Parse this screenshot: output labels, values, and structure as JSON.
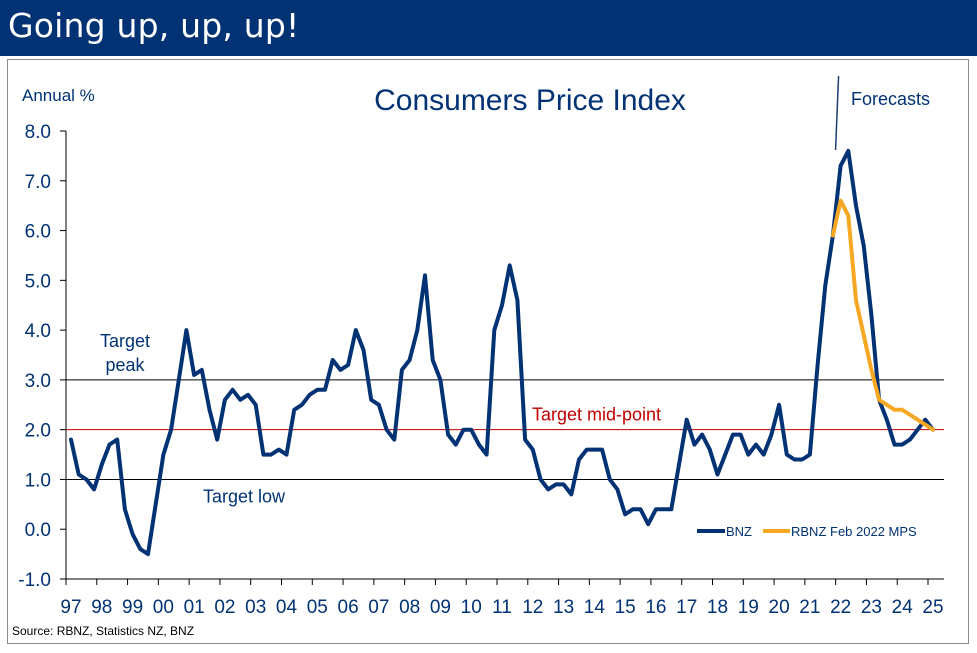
{
  "header": {
    "title": "Going up, up, up!"
  },
  "chart_data": {
    "type": "line",
    "title": "Consumers Price Index",
    "ylabel": "Annual %",
    "xlabel": "",
    "ylim": [
      -1.0,
      8.0
    ],
    "yticks": [
      "8.0",
      "7.0",
      "6.0",
      "5.0",
      "4.0",
      "3.0",
      "2.0",
      "1.0",
      "0.0",
      "-1.0"
    ],
    "ytick_values": [
      8,
      7,
      6,
      5,
      4,
      3,
      2,
      1,
      0,
      -1
    ],
    "xlim": [
      1997.0,
      2025.2
    ],
    "xtick_labels": [
      "97",
      "98",
      "99",
      "00",
      "01",
      "02",
      "03",
      "04",
      "05",
      "06",
      "07",
      "08",
      "09",
      "10",
      "11",
      "12",
      "13",
      "14",
      "15",
      "16",
      "17",
      "18",
      "19",
      "20",
      "21",
      "22",
      "23",
      "24",
      "25"
    ],
    "xtick_values": [
      1997,
      1998,
      1999,
      2000,
      2001,
      2002,
      2003,
      2004,
      2005,
      2006,
      2007,
      2008,
      2009,
      2010,
      2011,
      2012,
      2013,
      2014,
      2015,
      2016,
      2017,
      2018,
      2019,
      2020,
      2021,
      2022,
      2023,
      2024,
      2025
    ],
    "grid": false,
    "reference_lines": [
      {
        "name": "target-peak",
        "value": 3.0,
        "label": "Target\npeak",
        "color": "#000000"
      },
      {
        "name": "target-mid",
        "value": 2.0,
        "label": "Target mid-point",
        "color": "#c00000"
      },
      {
        "name": "target-low",
        "value": 1.0,
        "label": "Target low",
        "color": "#000000"
      }
    ],
    "annotations": [
      {
        "text": "Forecasts",
        "x": 2021.9
      }
    ],
    "legend": {
      "placement": "bottom-right",
      "entries": [
        "BNZ",
        "RBNZ Feb 2022 MPS"
      ]
    },
    "source": "Source: RBNZ, Statistics NZ, BNZ",
    "series": [
      {
        "name": "BNZ",
        "color": "#003274",
        "x": [
          1997.0,
          1997.25,
          1997.5,
          1997.75,
          1998.0,
          1998.25,
          1998.5,
          1998.75,
          1999.0,
          1999.25,
          1999.5,
          1999.75,
          2000.0,
          2000.25,
          2000.5,
          2000.75,
          2001.0,
          2001.25,
          2001.5,
          2001.75,
          2002.0,
          2002.25,
          2002.5,
          2002.75,
          2003.0,
          2003.25,
          2003.5,
          2003.75,
          2004.0,
          2004.25,
          2004.5,
          2004.75,
          2005.0,
          2005.25,
          2005.5,
          2005.75,
          2006.0,
          2006.25,
          2006.5,
          2006.75,
          2007.0,
          2007.25,
          2007.5,
          2007.75,
          2008.0,
          2008.25,
          2008.5,
          2008.75,
          2009.0,
          2009.25,
          2009.5,
          2009.75,
          2010.0,
          2010.25,
          2010.5,
          2010.75,
          2011.0,
          2011.25,
          2011.5,
          2011.75,
          2012.0,
          2012.25,
          2012.5,
          2012.75,
          2013.0,
          2013.25,
          2013.5,
          2013.75,
          2014.0,
          2014.25,
          2014.5,
          2014.75,
          2015.0,
          2015.25,
          2015.5,
          2015.75,
          2016.0,
          2016.25,
          2016.5,
          2016.75,
          2017.0,
          2017.25,
          2017.5,
          2017.75,
          2018.0,
          2018.25,
          2018.5,
          2018.75,
          2019.0,
          2019.25,
          2019.5,
          2019.75,
          2020.0,
          2020.25,
          2020.5,
          2020.75,
          2021.0,
          2021.25,
          2021.5,
          2021.75,
          2022.0,
          2022.25,
          2022.5,
          2022.75,
          2023.0,
          2023.25,
          2023.5,
          2023.75,
          2024.0,
          2024.25,
          2024.5,
          2024.75,
          2025.0
        ],
        "values": [
          1.8,
          1.1,
          1.0,
          0.8,
          1.3,
          1.7,
          1.8,
          0.4,
          -0.1,
          -0.4,
          -0.5,
          0.5,
          1.5,
          2.0,
          3.0,
          4.0,
          3.1,
          3.2,
          2.4,
          1.8,
          2.6,
          2.8,
          2.6,
          2.7,
          2.5,
          1.5,
          1.5,
          1.6,
          1.5,
          2.4,
          2.5,
          2.7,
          2.8,
          2.8,
          3.4,
          3.2,
          3.3,
          4.0,
          3.6,
          2.6,
          2.5,
          2.0,
          1.8,
          3.2,
          3.4,
          4.0,
          5.1,
          3.4,
          3.0,
          1.9,
          1.7,
          2.0,
          2.0,
          1.7,
          1.5,
          4.0,
          4.5,
          5.3,
          4.6,
          1.8,
          1.6,
          1.0,
          0.8,
          0.9,
          0.9,
          0.7,
          1.4,
          1.6,
          1.6,
          1.6,
          1.0,
          0.8,
          0.3,
          0.4,
          0.4,
          0.1,
          0.4,
          0.4,
          0.4,
          1.3,
          2.2,
          1.7,
          1.9,
          1.6,
          1.1,
          1.5,
          1.9,
          1.9,
          1.5,
          1.7,
          1.5,
          1.9,
          2.5,
          1.5,
          1.4,
          1.4,
          1.5,
          3.3,
          4.9,
          5.9,
          7.3,
          7.6,
          6.5,
          5.7,
          4.3,
          2.6,
          2.2,
          1.7,
          1.7,
          1.8,
          2.0,
          2.2,
          2.0
        ]
      },
      {
        "name": "RBNZ Feb 2022 MPS",
        "color": "#f7a823",
        "x": [
          2021.75,
          2022.0,
          2022.25,
          2022.5,
          2022.75,
          2023.0,
          2023.25,
          2023.5,
          2023.75,
          2024.0,
          2024.25,
          2024.5,
          2024.75,
          2025.0
        ],
        "values": [
          5.9,
          6.6,
          6.3,
          4.6,
          3.9,
          3.2,
          2.6,
          2.5,
          2.4,
          2.4,
          2.3,
          2.2,
          2.1,
          2.0
        ]
      }
    ]
  }
}
